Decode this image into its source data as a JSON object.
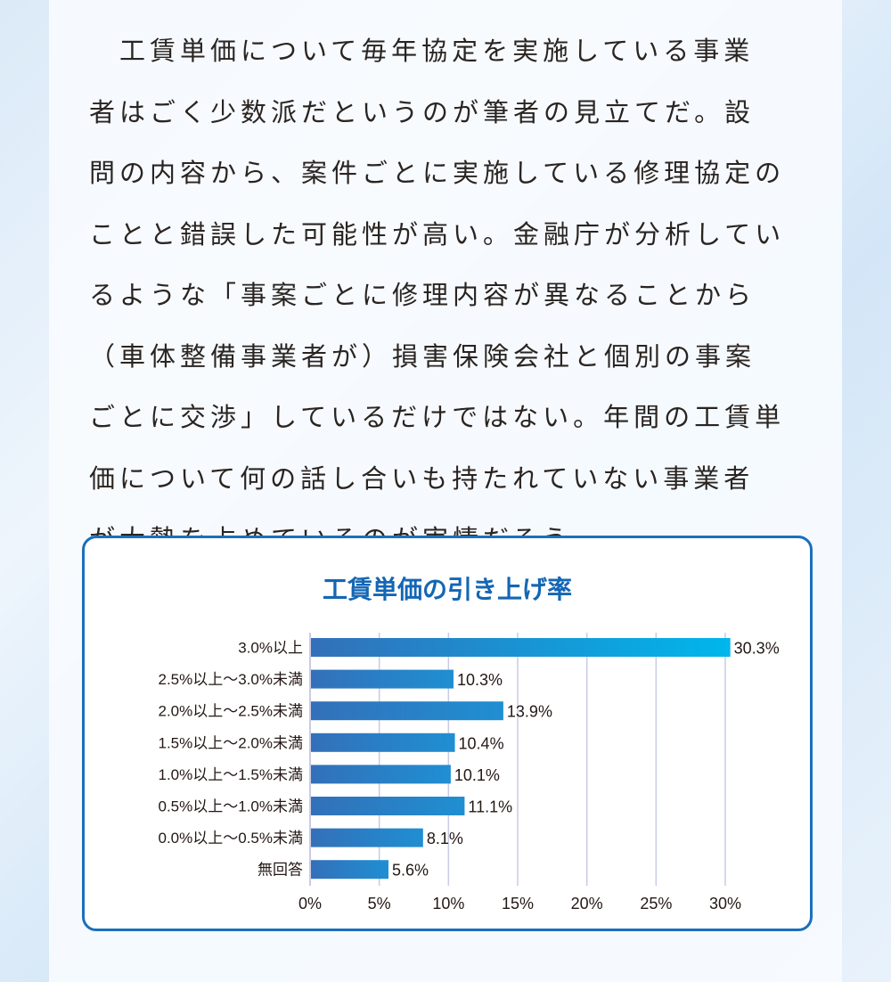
{
  "article": {
    "lines": [
      "　工賃単価について毎年協定を実施している事業",
      "者はごく少数派だというのが筆者の見立てだ。設",
      "問の内容から、案件ごとに実施している修理協定の",
      "ことと錯誤した可能性が高い。金融庁が分析してい",
      "るような「事案ごとに修理内容が異なることから",
      "（車体整備事業者が）損害保険会社と個別の事案",
      "ごとに交渉」しているだけではない。年間の工賃単",
      "価について何の話し合いも持たれていない事業者",
      "が大勢を占めているのが実情だろう。"
    ]
  },
  "chart_data": {
    "type": "bar",
    "orientation": "horizontal",
    "title": "工賃単価の引き上げ率",
    "categories": [
      "3.0%以上",
      "2.5%以上～3.0%未満",
      "2.0%以上～2.5%未満",
      "1.5%以上～2.0%未満",
      "1.0%以上～1.5%未満",
      "0.5%以上～1.0%未満",
      "0.0%以上～0.5%未満",
      "無回答"
    ],
    "values": [
      30.3,
      10.3,
      13.9,
      10.4,
      10.1,
      11.1,
      8.1,
      5.6
    ],
    "value_labels": [
      "30.3%",
      "10.3%",
      "13.9%",
      "10.4%",
      "10.1%",
      "11.1%",
      "8.1%",
      "5.6%"
    ],
    "xlim": [
      0,
      30
    ],
    "x_ticks": [
      "0%",
      "5%",
      "10%",
      "15%",
      "20%",
      "25%",
      "30%"
    ],
    "grid": true,
    "colors": {
      "bar_start": "#3370b9",
      "bar_end": "#00b6ec",
      "grid": "#c9cbe6",
      "frame": "#1a6fbd",
      "title": "#1466b4"
    }
  }
}
